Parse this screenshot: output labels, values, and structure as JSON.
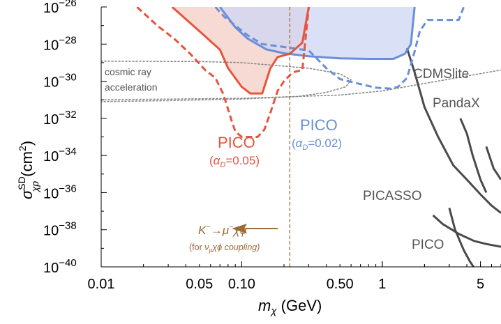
{
  "chart_data": {
    "type": "line",
    "x_scale": "log",
    "y_scale": "log",
    "xlim": [
      0.01,
      7
    ],
    "ylim": [
      1e-40,
      1e-26
    ],
    "xlabel_text": "(GeV)",
    "ylabel_text": "(cm",
    "x_ticks": [
      {
        "value": 0.01,
        "label": "0.01"
      },
      {
        "value": 0.05,
        "label": "0.05"
      },
      {
        "value": 0.1,
        "label": "0.10"
      },
      {
        "value": 0.5,
        "label": "0.50"
      },
      {
        "value": 1,
        "label": "1"
      },
      {
        "value": 5,
        "label": "5"
      }
    ],
    "y_ticks": [
      {
        "value": 1e-26,
        "exp": "−26"
      },
      {
        "value": 1e-28,
        "exp": "−28"
      },
      {
        "value": 1e-30,
        "exp": "−30"
      },
      {
        "value": 1e-32,
        "exp": "−32"
      },
      {
        "value": 1e-34,
        "exp": "−34"
      },
      {
        "value": 1e-36,
        "exp": "−36"
      },
      {
        "value": 1e-38,
        "exp": "−38"
      },
      {
        "value": 1e-40,
        "exp": "−40"
      }
    ],
    "colors": {
      "pico_red": "#e8533d",
      "pico_red_fill": "#f6cdc5",
      "pico_blue": "#6a8fd8",
      "pico_blue_fill": "#cdd6f3",
      "overlap_fill": "#c9a0ab",
      "cosmic_gray": "#888888",
      "direct_gray": "#4a4a4a",
      "kaon_brown": "#9a6c37"
    },
    "series": [
      {
        "name": "PICO (α_D=0.05)",
        "style": "solid-red-filled",
        "points": [
          [
            0.032,
            1e-26
          ],
          [
            0.05,
            5e-28
          ],
          [
            0.07,
            5e-29
          ],
          [
            0.08,
            5e-30
          ],
          [
            0.1,
            5e-31
          ],
          [
            0.115,
            2.2e-31
          ],
          [
            0.14,
            2.2e-31
          ],
          [
            0.16,
            5e-30
          ],
          [
            0.18,
            2e-29
          ],
          [
            0.22,
            3e-29
          ],
          [
            0.27,
            1.2e-28
          ],
          [
            0.3,
            1e-26
          ]
        ]
      },
      {
        "name": "PICO (α_D=0.05)",
        "style": "dashed-red",
        "points": [
          [
            0.018,
            1e-26
          ],
          [
            0.025,
            1e-27
          ],
          [
            0.033,
            2e-28
          ],
          [
            0.043,
            3e-29
          ],
          [
            0.055,
            4e-30
          ],
          [
            0.065,
            1.5e-30
          ],
          [
            0.074,
            2e-31
          ],
          [
            0.085,
            7e-33
          ],
          [
            0.09,
            2e-33
          ],
          [
            0.1,
            1e-33
          ],
          [
            0.13,
            1e-33
          ],
          [
            0.145,
            2.5e-33
          ],
          [
            0.16,
            2e-32
          ],
          [
            0.18,
            3e-31
          ],
          [
            0.2,
            1e-30
          ],
          [
            0.23,
            3e-30
          ],
          [
            0.27,
            4e-30
          ],
          [
            0.3,
            1e-26
          ]
        ]
      },
      {
        "name": "PICO (α_D=0.02)",
        "style": "solid-blue-filled",
        "points": [
          [
            0.07,
            1e-26
          ],
          [
            0.09,
            8e-28
          ],
          [
            0.11,
            2e-28
          ],
          [
            0.15,
            5.2e-29
          ],
          [
            0.2,
            3.2e-29
          ],
          [
            0.3,
            2.2e-29
          ],
          [
            0.5,
            1.7e-29
          ],
          [
            0.8,
            1.6e-29
          ],
          [
            1.2,
            1.6e-29
          ],
          [
            1.45,
            3e-29
          ],
          [
            1.6,
            1e-28
          ],
          [
            1.7,
            1e-26
          ]
        ]
      },
      {
        "name": "PICO (α_D=0.02)",
        "style": "dashed-blue",
        "points": [
          [
            0.065,
            1e-26
          ],
          [
            0.075,
            3e-27
          ],
          [
            0.09,
            1e-27
          ],
          [
            0.11,
            3e-28
          ],
          [
            0.14,
            1e-28
          ],
          [
            0.2,
            7e-29
          ],
          [
            0.3,
            4.5e-29
          ],
          [
            0.4,
            5e-30
          ],
          [
            0.5,
            1.3e-30
          ],
          [
            0.7,
            7e-31
          ],
          [
            0.9,
            4.5e-31
          ],
          [
            1.15,
            4e-31
          ],
          [
            1.3,
            5e-31
          ],
          [
            1.5,
            1.5e-30
          ],
          [
            1.7,
            4e-29
          ],
          [
            1.85,
            5e-28
          ],
          [
            2.1,
            2e-27
          ],
          [
            3.5,
            2e-27
          ],
          [
            3.8,
            1e-26
          ]
        ]
      },
      {
        "name": "cosmic ray acceleration",
        "style": "dotted-gray",
        "points": [
          [
            0.01,
            1.2e-29
          ],
          [
            0.05,
            1.15e-29
          ],
          [
            0.1,
            1e-29
          ],
          [
            0.3,
            5e-30
          ],
          [
            0.5,
            2.5e-30
          ],
          [
            0.6,
            1.2e-30
          ],
          [
            0.55,
            5e-31
          ],
          [
            0.4,
            2.5e-31
          ],
          [
            0.25,
            1.5e-31
          ],
          [
            0.1,
            1.1e-31
          ],
          [
            0.03,
            9e-32
          ],
          [
            0.01,
            8e-32
          ]
        ]
      },
      {
        "name": "CDMSlite",
        "style": "dotted-gray",
        "points": [
          [
            0.01,
            1e-31
          ],
          [
            0.1,
            1.2e-31
          ],
          [
            0.5,
            1.8e-31
          ],
          [
            1,
            3e-31
          ],
          [
            3,
            1.3e-30
          ],
          [
            7,
            4e-30
          ]
        ]
      },
      {
        "name": "CDMSlite",
        "style": "solid-dark",
        "points": [
          [
            1.5,
            6e-29
          ],
          [
            1.7,
            3e-30
          ],
          [
            2,
            4e-32
          ],
          [
            2.5,
            1e-33
          ],
          [
            3.2,
            3e-35
          ],
          [
            4,
            5e-36
          ],
          [
            5,
            8e-37
          ],
          [
            6,
            2e-37
          ],
          [
            7,
            8e-38
          ]
        ]
      },
      {
        "name": "PandaX",
        "style": "solid-dark",
        "points": [
          [
            3.6,
            1e-32
          ],
          [
            4,
            1.5e-33
          ],
          [
            4.4,
            1e-34
          ],
          [
            5,
            5e-36
          ],
          [
            5.5,
            1e-36
          ]
        ]
      },
      {
        "name": "PICASSO",
        "style": "solid-dark",
        "points": [
          [
            2.3,
            6e-38
          ],
          [
            2.7,
            2e-38
          ],
          [
            3.5,
            6e-39
          ],
          [
            4.5,
            2.5e-39
          ],
          [
            5.5,
            1.7e-39
          ],
          [
            7,
            1.2e-39
          ]
        ]
      },
      {
        "name": "PICO",
        "style": "solid-dark",
        "points": [
          [
            3,
            1.5e-37
          ],
          [
            3.3,
            1e-38
          ],
          [
            3.8,
            8e-40
          ],
          [
            4.2,
            2e-40
          ],
          [
            4.5,
            9e-41
          ]
        ]
      },
      {
        "name": "PICO",
        "style": "solid-dark",
        "points": [
          [
            5.5,
            3e-34
          ],
          [
            6.2,
            2e-35
          ],
          [
            7,
            5e-36
          ]
        ]
      }
    ],
    "kaon_line_x": 0.22,
    "annotations": {
      "cosmic_line1": "cosmic ray",
      "cosmic_line2": "acceleration",
      "cdmslite": "CDMSlite",
      "pandax": "PandaX",
      "picasso": "PICASSO",
      "pico_gray": "PICO",
      "pico_red_title": "PICO",
      "pico_red_alpha": "=0.05)",
      "pico_blue_title": "PICO",
      "pico_blue_alpha": "=0.02)",
      "kaon_process_1": "K",
      "kaon_process_2": "→μ",
      "kaon_process_3": "χϕ",
      "kaon_coupling_1": "(for ",
      "kaon_coupling_2": "χϕ coupling)"
    }
  }
}
